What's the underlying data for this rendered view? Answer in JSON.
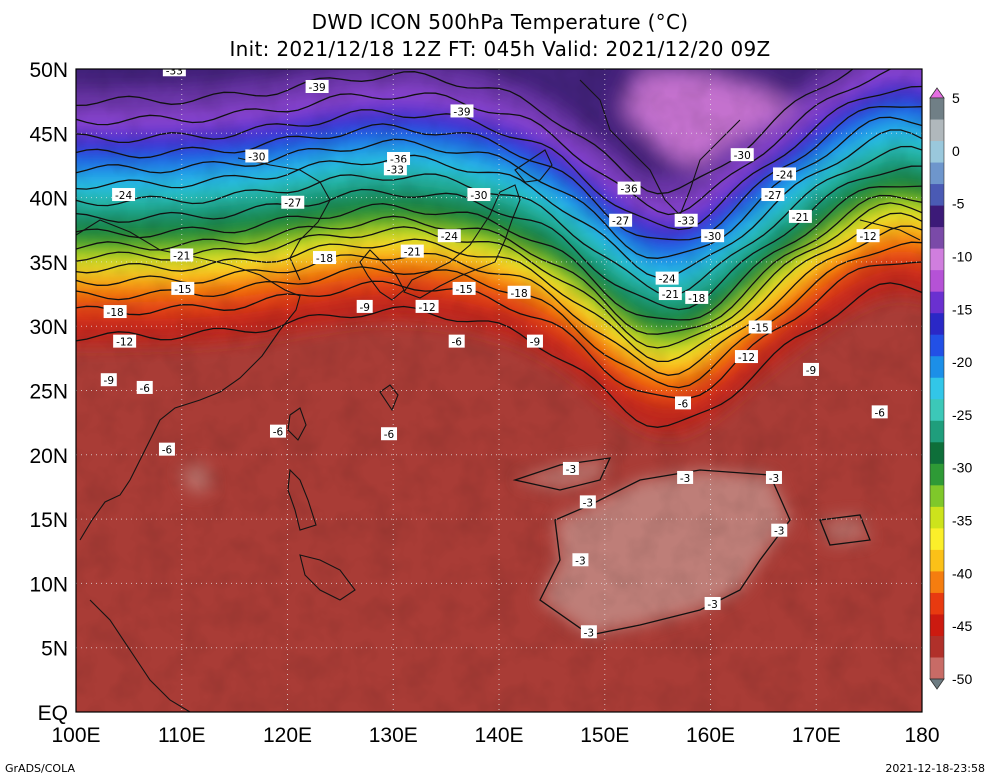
{
  "header": {
    "title": "DWD ICON 500hPa Temperature (°C)",
    "subtitle": "Init: 2021/12/18 12Z  FT: 045h  Valid: 2021/12/20 09Z"
  },
  "map": {
    "region": "Western North Pacific / East Asia",
    "lat_range": [
      0,
      50
    ],
    "lon_range": [
      100,
      180
    ],
    "lat_labels": [
      "50N",
      "45N",
      "40N",
      "35N",
      "30N",
      "25N",
      "20N",
      "15N",
      "10N",
      "5N",
      "EQ"
    ],
    "lon_labels": [
      "100E",
      "110E",
      "120E",
      "130E",
      "140E",
      "150E",
      "160E",
      "170E",
      "180"
    ],
    "contour_labels": [
      {
        "text": "-33",
        "lon": 109.3,
        "lat": 49.9
      },
      {
        "text": "-39",
        "lon": 122.8,
        "lat": 48.6
      },
      {
        "text": "-39",
        "lon": 136.5,
        "lat": 46.7
      },
      {
        "text": "-30",
        "lon": 117.1,
        "lat": 43.2
      },
      {
        "text": "-36",
        "lon": 130.5,
        "lat": 43.0
      },
      {
        "text": "-33",
        "lon": 130.2,
        "lat": 42.2
      },
      {
        "text": "-36",
        "lon": 152.3,
        "lat": 40.7
      },
      {
        "text": "-30",
        "lon": 163.0,
        "lat": 43.3
      },
      {
        "text": "-24",
        "lon": 167.0,
        "lat": 41.8
      },
      {
        "text": "-24",
        "lon": 104.5,
        "lat": 40.2
      },
      {
        "text": "-27",
        "lon": 120.5,
        "lat": 39.6
      },
      {
        "text": "-30",
        "lon": 138.1,
        "lat": 40.2
      },
      {
        "text": "-27",
        "lon": 151.5,
        "lat": 38.2
      },
      {
        "text": "-33",
        "lon": 157.7,
        "lat": 38.2
      },
      {
        "text": "-30",
        "lon": 160.2,
        "lat": 37.0
      },
      {
        "text": "-27",
        "lon": 165.9,
        "lat": 40.2
      },
      {
        "text": "-21",
        "lon": 168.5,
        "lat": 38.5
      },
      {
        "text": "-12",
        "lon": 174.9,
        "lat": 37.0
      },
      {
        "text": "-24",
        "lon": 135.3,
        "lat": 37.0
      },
      {
        "text": "-21",
        "lon": 131.8,
        "lat": 35.8
      },
      {
        "text": "-18",
        "lon": 123.5,
        "lat": 35.3
      },
      {
        "text": "-21",
        "lon": 110.0,
        "lat": 35.5
      },
      {
        "text": "-24",
        "lon": 155.9,
        "lat": 33.7
      },
      {
        "text": "-21",
        "lon": 156.2,
        "lat": 32.5
      },
      {
        "text": "-18",
        "lon": 141.9,
        "lat": 32.6
      },
      {
        "text": "-15",
        "lon": 136.7,
        "lat": 32.9
      },
      {
        "text": "-15",
        "lon": 110.1,
        "lat": 32.9
      },
      {
        "text": "-18",
        "lon": 103.7,
        "lat": 31.1
      },
      {
        "text": "-9",
        "lon": 127.3,
        "lat": 31.5
      },
      {
        "text": "-12",
        "lon": 133.2,
        "lat": 31.5
      },
      {
        "text": "-18",
        "lon": 158.7,
        "lat": 32.2
      },
      {
        "text": "-15",
        "lon": 164.7,
        "lat": 29.9
      },
      {
        "text": "-12",
        "lon": 163.4,
        "lat": 27.6
      },
      {
        "text": "-9",
        "lon": 169.5,
        "lat": 26.6
      },
      {
        "text": "-12",
        "lon": 104.6,
        "lat": 28.8
      },
      {
        "text": "-6",
        "lon": 136.0,
        "lat": 28.8
      },
      {
        "text": "-9",
        "lon": 143.4,
        "lat": 28.8
      },
      {
        "text": "-9",
        "lon": 103.1,
        "lat": 25.8
      },
      {
        "text": "-6",
        "lon": 106.5,
        "lat": 25.2
      },
      {
        "text": "-6",
        "lon": 157.4,
        "lat": 24.0
      },
      {
        "text": "-6",
        "lon": 176.0,
        "lat": 23.3
      },
      {
        "text": "-6",
        "lon": 119.1,
        "lat": 21.8
      },
      {
        "text": "-6",
        "lon": 129.6,
        "lat": 21.6
      },
      {
        "text": "-6",
        "lon": 108.6,
        "lat": 20.4
      },
      {
        "text": "-3",
        "lon": 146.8,
        "lat": 18.9
      },
      {
        "text": "-3",
        "lon": 157.6,
        "lat": 18.2
      },
      {
        "text": "-3",
        "lon": 166.0,
        "lat": 18.2
      },
      {
        "text": "-3",
        "lon": 148.4,
        "lat": 16.3
      },
      {
        "text": "-3",
        "lon": 166.5,
        "lat": 14.1
      },
      {
        "text": "-3",
        "lon": 147.7,
        "lat": 11.8
      },
      {
        "text": "-3",
        "lon": 160.2,
        "lat": 8.4
      },
      {
        "text": "-3",
        "lon": 148.5,
        "lat": 6.2
      }
    ]
  },
  "legend": {
    "labels": [
      "5",
      "0",
      "-5",
      "-10",
      "-15",
      "-20",
      "-25",
      "-30",
      "-35",
      "-40",
      "-45",
      "-50"
    ],
    "colors": [
      "#c86b66",
      "#b0302a",
      "#cc1a10",
      "#e83a10",
      "#f57d0f",
      "#fbc118",
      "#fbef2a",
      "#cde31c",
      "#7fc82a",
      "#2e9a36",
      "#0e6f3a",
      "#1f9e7c",
      "#3cc8b8",
      "#32c6e8",
      "#1c8fe8",
      "#2250e6",
      "#2a28c6",
      "#6a30d0",
      "#b552d6",
      "#d07ede",
      "#7a4aa8",
      "#3c1a78",
      "#4a5ab4",
      "#6e96cc",
      "#9ac8dc",
      "#b0b8bc",
      "#707f86"
    ]
  },
  "footer": {
    "left": "GrADS/COLA",
    "right": "2021-12-18-23:58"
  },
  "colors": {
    "tropics": "#a83a35",
    "warm_core": "#c0867f",
    "cold_core": "#45247a"
  }
}
